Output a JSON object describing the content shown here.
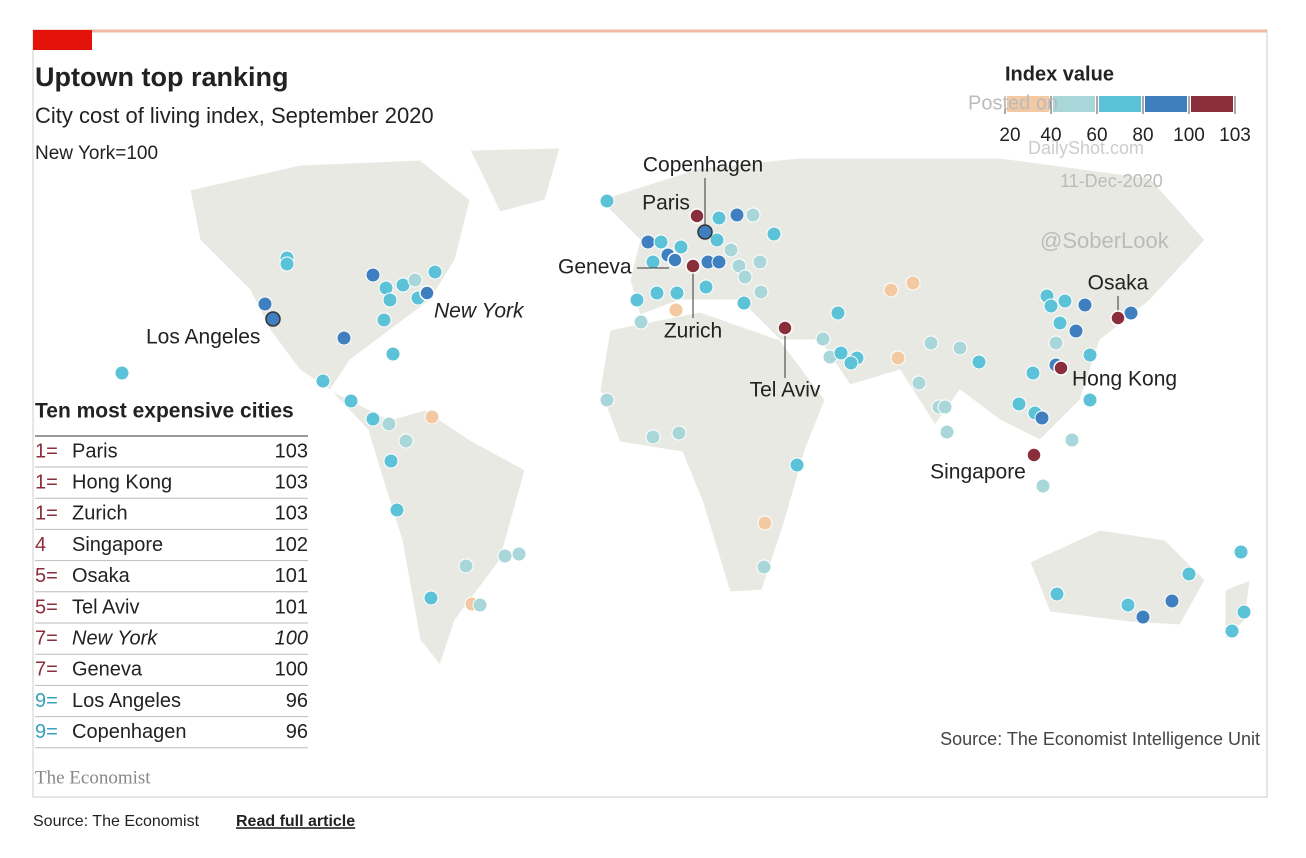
{
  "header": {
    "title": "Uptown top ranking",
    "subtitle": "City cost of living index, September 2020",
    "note": "New York=100"
  },
  "legend": {
    "title": "Index value",
    "colors": [
      "#f3c9a2",
      "#a9d6d8",
      "#5cc2d8",
      "#3f7fc0",
      "#8a2e3b"
    ],
    "ticks": [
      20,
      40,
      60,
      80,
      100,
      103
    ]
  },
  "map": {
    "labels": [
      "Paris",
      "Hong Kong",
      "Zurich",
      "Singapore",
      "Osaka",
      "Tel Aviv",
      "New York",
      "Geneva",
      "Los Angeles",
      "Copenhagen"
    ]
  },
  "table": {
    "title": "Ten most expensive cities",
    "rows": [
      [
        "1=",
        "Paris",
        103
      ],
      [
        "1=",
        "Hong Kong",
        103
      ],
      [
        "1=",
        "Zurich",
        103
      ],
      [
        "4",
        "Singapore",
        102
      ],
      [
        "5=",
        "Osaka",
        101
      ],
      [
        "5=",
        "Tel Aviv",
        101
      ],
      [
        "7=",
        "New York",
        100
      ],
      [
        "7=",
        "Geneva",
        100
      ],
      [
        "9=",
        "Los Angeles",
        96
      ],
      [
        "9=",
        "Copenhagen",
        96
      ]
    ]
  },
  "source": "Source: The Economist Intelligence Unit",
  "brand": "The Economist",
  "watermark": [
    "Posted on",
    "DailyShot.com",
    "11-Dec-2020",
    "@SoberLook"
  ],
  "footer": {
    "source": "Source: The Economist",
    "link": "Read full article"
  }
}
